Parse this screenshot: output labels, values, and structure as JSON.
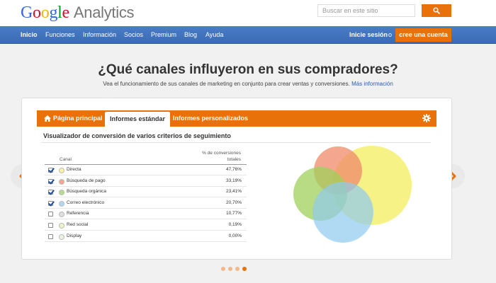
{
  "header": {
    "logo_letters": [
      {
        "ch": "G",
        "color": "#3369e8"
      },
      {
        "ch": "o",
        "color": "#d50f25"
      },
      {
        "ch": "o",
        "color": "#eeb211"
      },
      {
        "ch": "g",
        "color": "#3369e8"
      },
      {
        "ch": "l",
        "color": "#009925"
      },
      {
        "ch": "e",
        "color": "#d50f25"
      }
    ],
    "product_name": "Analytics",
    "search_placeholder": "Buscar en este sitio",
    "search_icon": "search-icon"
  },
  "nav": {
    "items": [
      "Inicio",
      "Funciones",
      "Información",
      "Socios",
      "Premium",
      "Blog",
      "Ayuda"
    ],
    "active": "Inicio",
    "login_label": "Inicie sesión",
    "or_label": "o",
    "create_account_label": "cree una cuenta"
  },
  "hero": {
    "headline": "¿Qué canales influyeron en sus compradores?",
    "subline": "Vea el funcionamiento de sus canales de marketing en conjunto para crear ventas y conversiones.",
    "more_link": "Más información"
  },
  "panel": {
    "tabs": {
      "home": "Página principal",
      "standard": "Informes estándar",
      "custom": "Informes personalizados"
    },
    "active_tab": "Informes estándar",
    "title": "Visualizador de conversión de varios criterios de seguimiento",
    "table": {
      "col_channel": "Canal",
      "col_pct_line1": "% de conversiones",
      "col_pct_line2": "totales",
      "rows": [
        {
          "checked": true,
          "color": "#f7f3a8",
          "label": "Directa",
          "value": "47,76%"
        },
        {
          "checked": true,
          "color": "#f4a78c",
          "label": "Búsqueda de pago",
          "value": "33,19%"
        },
        {
          "checked": true,
          "color": "#b9dc8a",
          "label": "Búsqueda orgánica",
          "value": "23,41%"
        },
        {
          "checked": true,
          "color": "#aed9f2",
          "label": "Correo electrónico",
          "value": "20,70%"
        },
        {
          "checked": false,
          "color": "#dedede",
          "label": "Referencia",
          "value": "10,77%"
        },
        {
          "checked": false,
          "color": "#eef3c4",
          "label": "Red social",
          "value": "0,19%"
        },
        {
          "checked": false,
          "color": "#e8f4e0",
          "label": "Display",
          "value": "0,00%"
        }
      ]
    },
    "venn_colors": {
      "directa": "#f3ee5e",
      "pago": "#ef8a6a",
      "organica": "#9fd05a",
      "correo": "#8ecbf0"
    }
  },
  "carousel": {
    "pages": 4,
    "active_page": 4,
    "accent": "#e8710a"
  }
}
